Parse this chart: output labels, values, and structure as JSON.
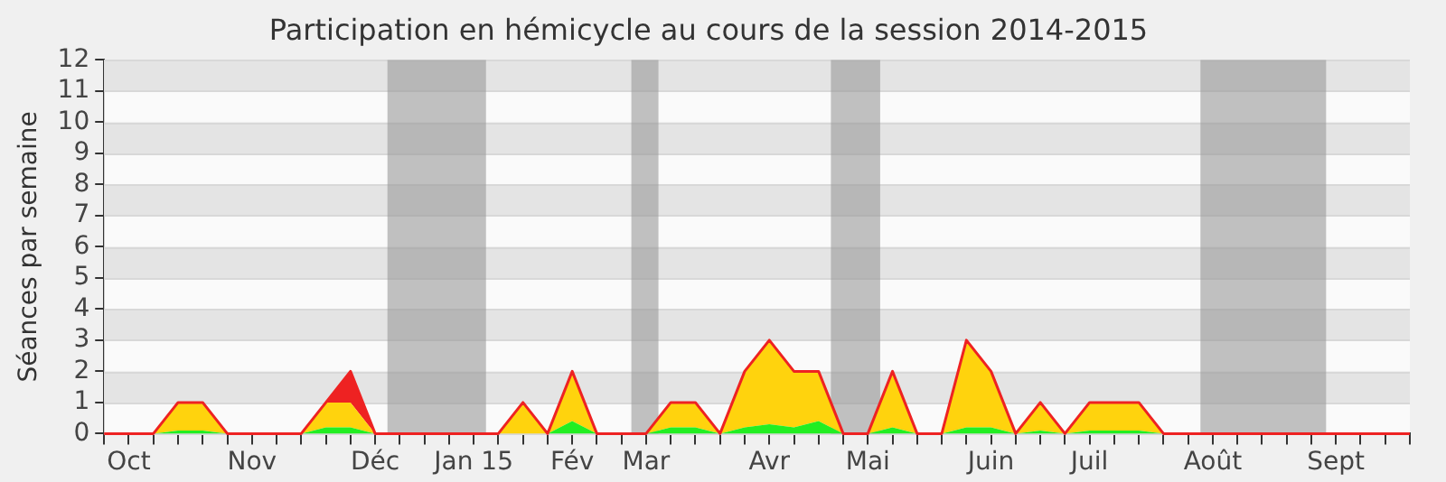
{
  "chart_data": {
    "type": "area",
    "title": "Participation en hémicycle au cours de la session 2014-2015",
    "ylabel": "Séances par semaine",
    "stacked": true,
    "grid": "y",
    "legend": false,
    "marker": "none",
    "categories": [
      null,
      "Oct",
      null,
      null,
      null,
      null,
      "Nov",
      null,
      null,
      null,
      null,
      "Déc",
      null,
      null,
      null,
      "Jan 15",
      null,
      null,
      null,
      "Fév",
      null,
      null,
      "Mar",
      null,
      null,
      null,
      null,
      "Avr",
      null,
      null,
      null,
      "Mai",
      null,
      null,
      null,
      null,
      "Juin",
      null,
      null,
      null,
      "Juil",
      null,
      null,
      null,
      null,
      "Août",
      null,
      null,
      null,
      null,
      "Sept",
      null,
      null,
      null
    ],
    "series": [
      {
        "color": "#22ee22",
        "values": [
          0,
          0,
          0,
          0.1,
          0.1,
          0,
          0,
          0,
          0,
          0.2,
          0.2,
          0,
          0,
          0,
          0,
          0,
          0,
          0,
          0,
          0.4,
          0,
          0,
          0,
          0.2,
          0.2,
          0,
          0.2,
          0.3,
          0.2,
          0.4,
          0,
          0,
          0.2,
          0,
          0,
          0.2,
          0.2,
          0,
          0.1,
          0,
          0.1,
          0.1,
          0.1,
          0,
          0,
          0,
          0,
          0,
          0,
          0,
          0,
          0,
          0,
          0
        ]
      },
      {
        "color": "#ffd30d",
        "values": [
          0,
          0,
          0,
          0.9,
          0.9,
          0,
          0,
          0,
          0,
          0.8,
          0.8,
          0,
          0,
          0,
          0,
          0,
          0,
          1,
          0,
          1.6,
          0,
          0,
          0,
          0.8,
          0.8,
          0,
          1.8,
          2.7,
          1.8,
          1.6,
          0,
          0,
          1.8,
          0,
          0,
          2.8,
          1.8,
          0,
          0.9,
          0,
          0.9,
          0.9,
          0.9,
          0,
          0,
          0,
          0,
          0,
          0,
          0,
          0,
          0,
          0,
          0
        ]
      },
      {
        "color": "#ee2222",
        "values": [
          null,
          null,
          null,
          null,
          null,
          null,
          null,
          null,
          null,
          0,
          1,
          0,
          null,
          null,
          null,
          null,
          null,
          null,
          null,
          null,
          null,
          null,
          null,
          null,
          null,
          null,
          null,
          null,
          null,
          null,
          null,
          null,
          null,
          null,
          null,
          null,
          null,
          null,
          null,
          null,
          null,
          null,
          null,
          null,
          null,
          null,
          null,
          null,
          null,
          null,
          null,
          null,
          null,
          null
        ]
      }
    ],
    "ylim": [
      0,
      12
    ],
    "yticks": [
      0,
      1,
      2,
      3,
      4,
      5,
      6,
      7,
      8,
      9,
      10,
      11,
      12
    ]
  }
}
